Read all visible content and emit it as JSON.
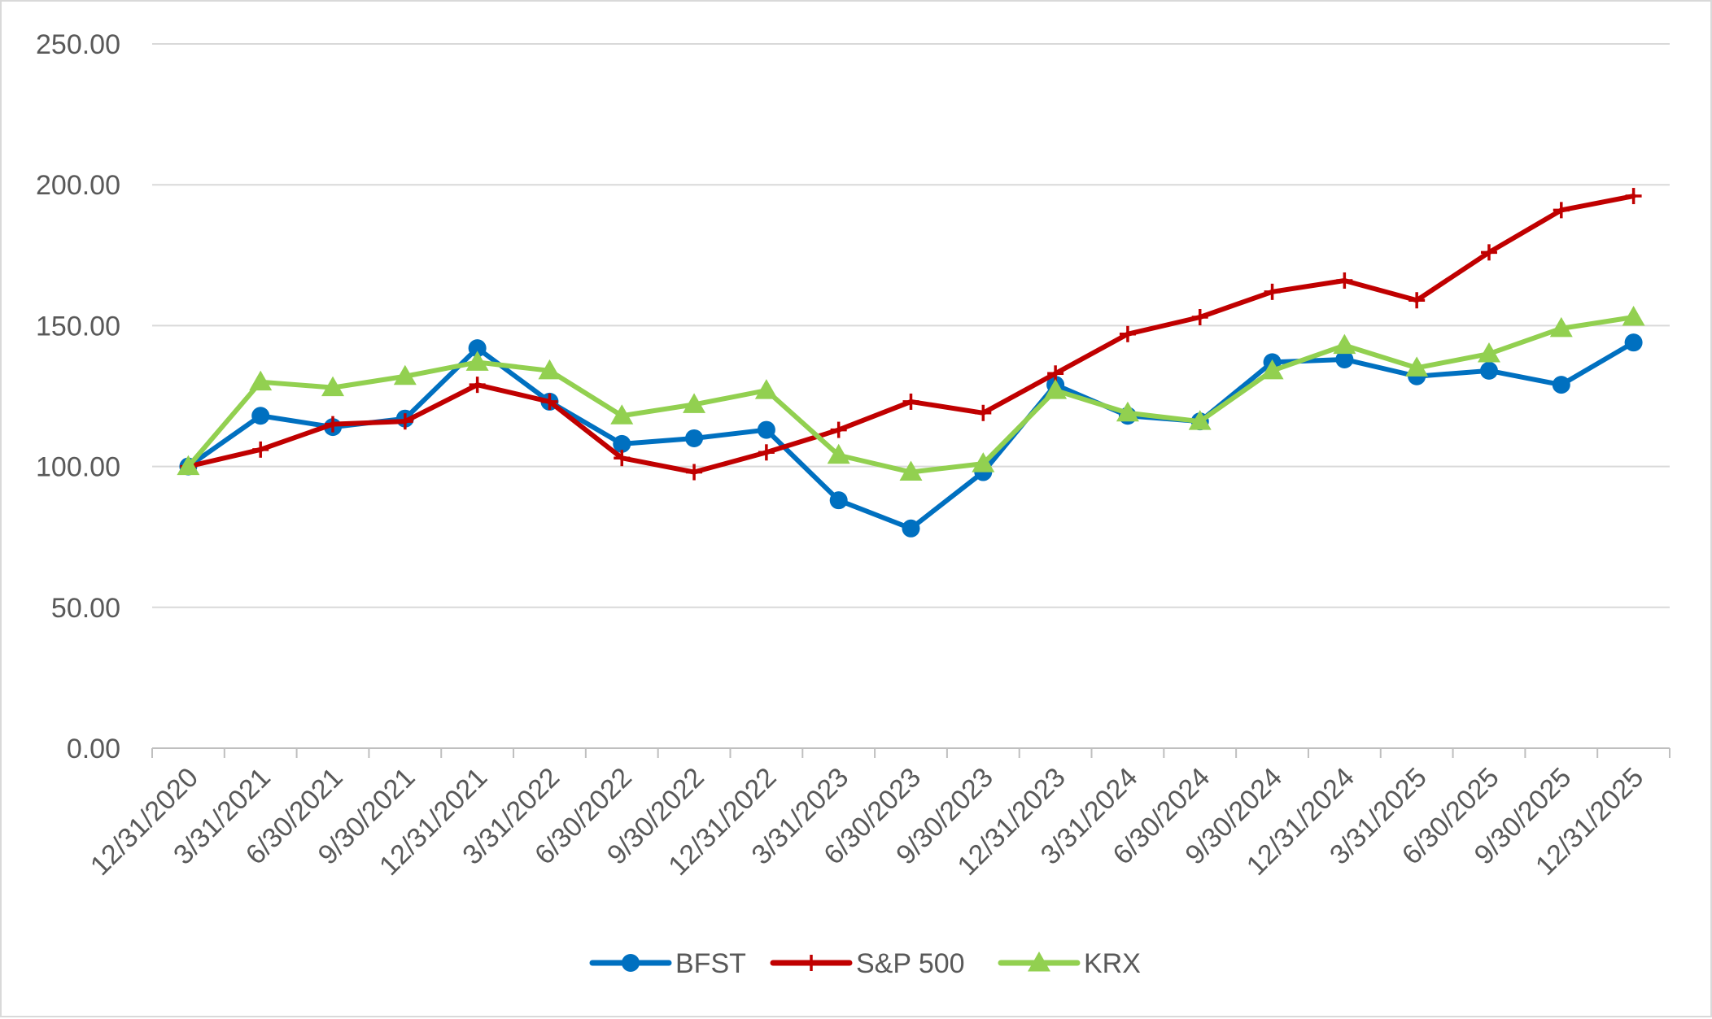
{
  "chart_data": {
    "type": "line",
    "title": "",
    "xlabel": "",
    "ylabel": "",
    "categories": [
      "12/31/2020",
      "3/31/2021",
      "6/30/2021",
      "9/30/2021",
      "12/31/2021",
      "3/31/2022",
      "6/30/2022",
      "9/30/2022",
      "12/31/2022",
      "3/31/2023",
      "6/30/2023",
      "9/30/2023",
      "12/31/2023",
      "3/31/2024",
      "6/30/2024",
      "9/30/2024",
      "12/31/2024",
      "3/31/2025",
      "6/30/2025",
      "9/30/2025",
      "12/31/2025"
    ],
    "y_ticks": [
      "0.00",
      "50.00",
      "100.00",
      "150.00",
      "200.00",
      "250.00"
    ],
    "ylim": [
      0,
      250
    ],
    "grid": "horizontal",
    "legend_position": "bottom",
    "series": [
      {
        "name": "BFST",
        "color": "#0070c0",
        "marker": "circle",
        "values": [
          100,
          118,
          114,
          117,
          142,
          123,
          108,
          110,
          113,
          88,
          78,
          98,
          129,
          118,
          116,
          137,
          138,
          132,
          134,
          129,
          144
        ]
      },
      {
        "name": "S&P 500",
        "color": "#c00000",
        "marker": "plus",
        "values": [
          100,
          106,
          115,
          116,
          129,
          123,
          103,
          98,
          105,
          113,
          123,
          119,
          133,
          147,
          153,
          162,
          166,
          159,
          176,
          191,
          196
        ]
      },
      {
        "name": "KRX",
        "color": "#92d050",
        "marker": "triangle",
        "values": [
          100,
          130,
          128,
          132,
          137,
          134,
          118,
          122,
          127,
          104,
          98,
          101,
          127,
          119,
          116,
          134,
          143,
          135,
          140,
          149,
          153
        ]
      }
    ]
  }
}
